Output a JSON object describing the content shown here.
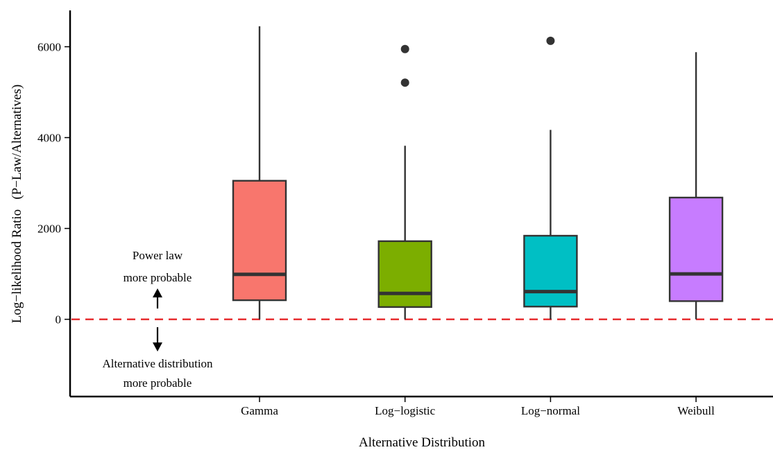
{
  "chart_data": {
    "type": "box",
    "title": "",
    "xlabel": "Alternative Distribution",
    "ylabel": "Log−likelihood Ratio   (P−Law/Alternatives)",
    "ylim": [
      -1700,
      6800
    ],
    "yticks": [
      0,
      2000,
      4000,
      6000
    ],
    "grid": false,
    "legend": "none",
    "categories": [
      "Gamma",
      "Log−logistic",
      "Log−normal",
      "Weibull"
    ],
    "boxes": [
      {
        "category": "Gamma",
        "whisker_low": 0,
        "q1": 420,
        "median": 990,
        "q3": 3050,
        "whisker_high": 6450,
        "outliers": [],
        "color": "#F8766D"
      },
      {
        "category": "Log−logistic",
        "whisker_low": 0,
        "q1": 270,
        "median": 570,
        "q3": 1720,
        "whisker_high": 3820,
        "outliers": [
          5210,
          5950
        ],
        "color": "#7CAE00"
      },
      {
        "category": "Log−normal",
        "whisker_low": 0,
        "q1": 280,
        "median": 610,
        "q3": 1840,
        "whisker_high": 4170,
        "outliers": [
          6130
        ],
        "color": "#00BFC4"
      },
      {
        "category": "Weibull",
        "whisker_low": 0,
        "q1": 400,
        "median": 1000,
        "q3": 2680,
        "whisker_high": 5880,
        "outliers": [],
        "color": "#C77CFF"
      }
    ],
    "reference_line": {
      "y": 0,
      "color": "#E41A1C",
      "style": "dashed"
    },
    "annotations": {
      "above_line_1": "Power law",
      "above_line_2": "more probable",
      "below_line_1": "Alternative distribution",
      "below_line_2": "more probable"
    }
  }
}
